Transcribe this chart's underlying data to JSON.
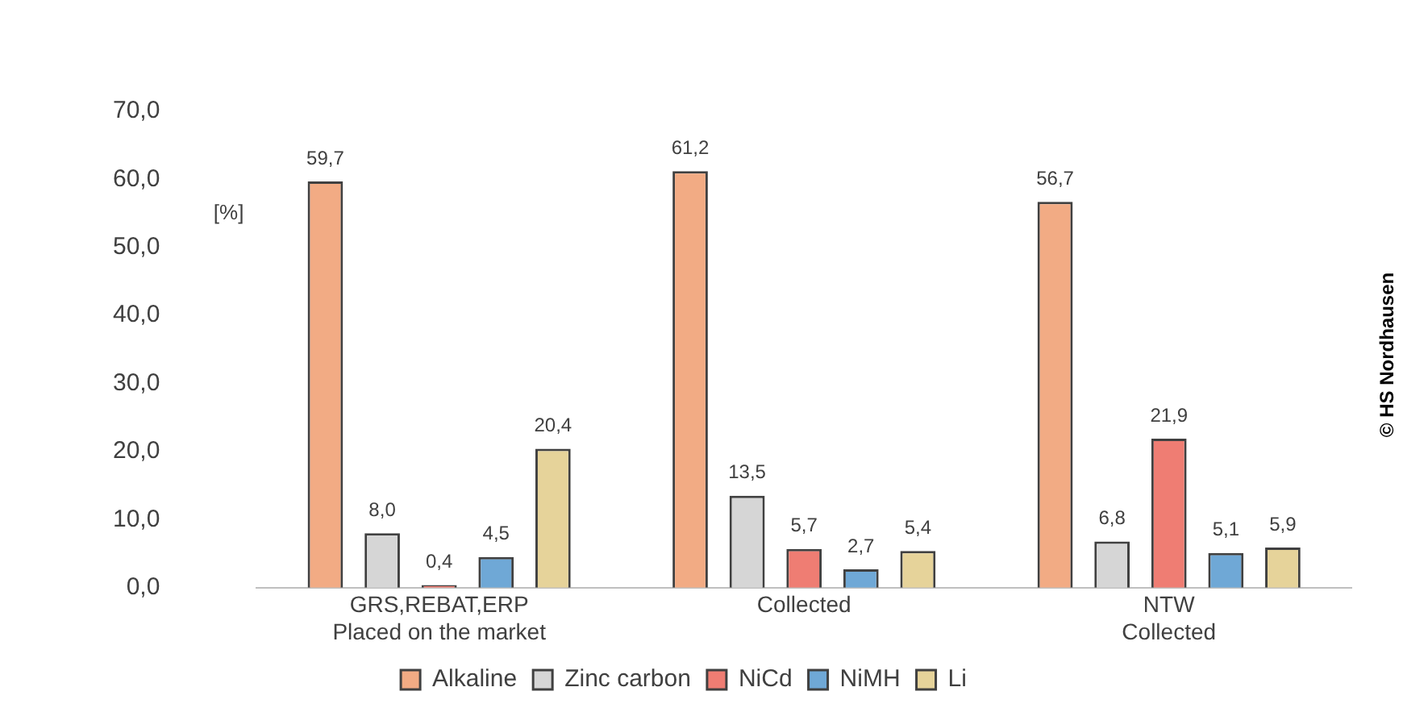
{
  "chart_data": {
    "type": "bar",
    "ylabel": "[%]",
    "categories": [
      "GRS,REBAT,ERP\nPlaced on the market",
      "Collected",
      "NTW\nCollected"
    ],
    "series": [
      {
        "name": "Alkaline",
        "color": "#f2ab84",
        "values": [
          59.7,
          61.2,
          56.7
        ],
        "value_labels": [
          "59,7",
          "61,2",
          "56,7"
        ]
      },
      {
        "name": "Zinc carbon",
        "color": "#d6d6d6",
        "values": [
          8.0,
          13.5,
          6.8
        ],
        "value_labels": [
          "8,0",
          "13,5",
          "6,8"
        ]
      },
      {
        "name": "NiCd",
        "color": "#ef7d73",
        "values": [
          0.4,
          5.7,
          21.9
        ],
        "value_labels": [
          "0,4",
          "5,7",
          "21,9"
        ]
      },
      {
        "name": "NiMH",
        "color": "#6fa8d6",
        "values": [
          4.5,
          2.7,
          5.1
        ],
        "value_labels": [
          "4,5",
          "2,7",
          "5,1"
        ]
      },
      {
        "name": "Li",
        "color": "#e6d39a",
        "values": [
          20.4,
          5.4,
          5.9
        ],
        "value_labels": [
          "20,4",
          "5,4",
          "5,9"
        ]
      }
    ],
    "ylim": [
      0,
      70
    ],
    "yticks": [
      {
        "value": 0,
        "label": "0,0"
      },
      {
        "value": 10,
        "label": "10,0"
      },
      {
        "value": 20,
        "label": "20,0"
      },
      {
        "value": 30,
        "label": "30,0"
      },
      {
        "value": 40,
        "label": "40,0"
      },
      {
        "value": 50,
        "label": "50,0"
      },
      {
        "value": 60,
        "label": "60,0"
      },
      {
        "value": 70,
        "label": "70,0"
      }
    ],
    "grid": false,
    "legend": "bottom",
    "annotations": [
      "© HS Nordhausen"
    ]
  }
}
